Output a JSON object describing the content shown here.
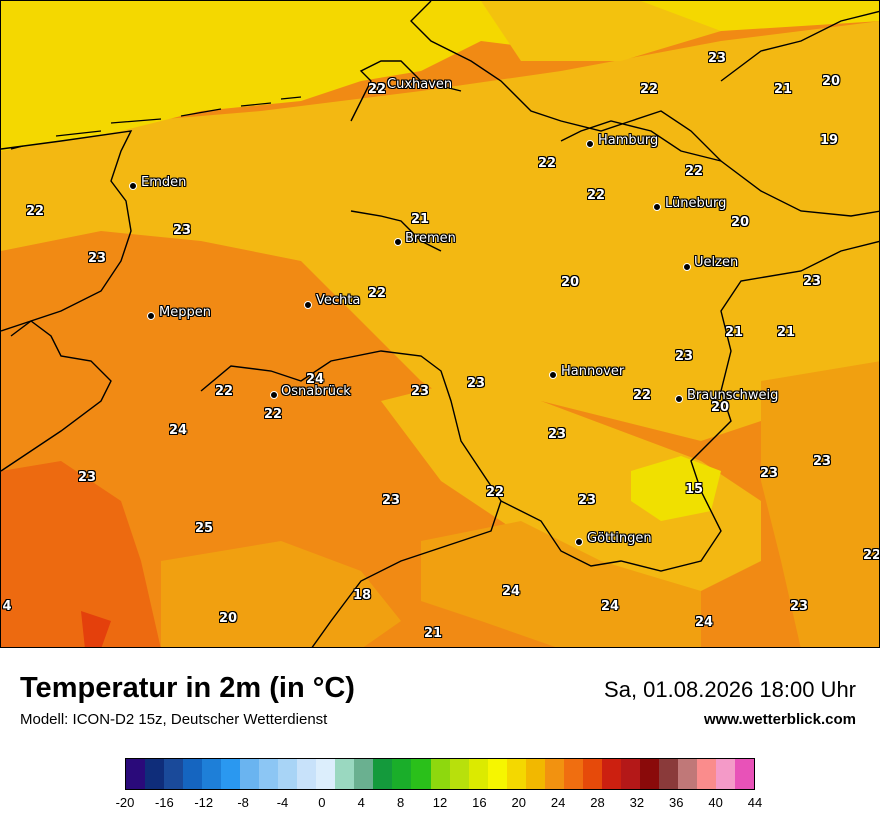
{
  "map": {
    "cities": [
      {
        "name": "Cuxhaven"
      },
      {
        "name": "Hamburg"
      },
      {
        "name": "Emden"
      },
      {
        "name": "Lüneburg"
      },
      {
        "name": "Bremen"
      },
      {
        "name": "Uelzen"
      },
      {
        "name": "Vechta"
      },
      {
        "name": "Meppen"
      },
      {
        "name": "Hannover"
      },
      {
        "name": "Osnabrück"
      },
      {
        "name": "Braunschweig"
      },
      {
        "name": "Göttingen"
      }
    ],
    "temperatures": [
      {
        "v": "22"
      },
      {
        "v": "21"
      },
      {
        "v": "20"
      },
      {
        "v": "22"
      },
      {
        "v": "19"
      },
      {
        "v": "22"
      },
      {
        "v": "22"
      },
      {
        "v": "22"
      },
      {
        "v": "22"
      },
      {
        "v": "23"
      },
      {
        "v": "21"
      },
      {
        "v": "20"
      },
      {
        "v": "23"
      },
      {
        "v": "22"
      },
      {
        "v": "20"
      },
      {
        "v": "23"
      },
      {
        "v": "21"
      },
      {
        "v": "21"
      },
      {
        "v": "24"
      },
      {
        "v": "23"
      },
      {
        "v": "23"
      },
      {
        "v": "22"
      },
      {
        "v": "22"
      },
      {
        "v": "20"
      },
      {
        "v": "24"
      },
      {
        "v": "23"
      },
      {
        "v": "23"
      },
      {
        "v": "23"
      },
      {
        "v": "15"
      },
      {
        "v": "23"
      },
      {
        "v": "23"
      },
      {
        "v": "23"
      },
      {
        "v": "25"
      },
      {
        "v": "22"
      },
      {
        "v": "18"
      },
      {
        "v": "24"
      },
      {
        "v": "20"
      },
      {
        "v": "21"
      },
      {
        "v": "24"
      },
      {
        "v": "24"
      },
      {
        "v": "23"
      },
      {
        "v": "4"
      },
      {
        "v": "22"
      },
      {
        "v": "22"
      },
      {
        "v": "23"
      }
    ]
  },
  "footer": {
    "title": "Temperatur in 2m (in °C)",
    "model": "Modell: ICON-D2 15z, Deutscher Wetterdienst",
    "datetime": "Sa, 01.08.2026 18:00 Uhr",
    "source": "www.wetterblick.com"
  },
  "colorbar": {
    "colors": [
      "#2a0a7a",
      "#0f2d7a",
      "#1a4a9a",
      "#1565c0",
      "#1e7fd8",
      "#2a98f0",
      "#6ab4f0",
      "#8cc6f4",
      "#a8d4f6",
      "#c8e2fa",
      "#dceefc",
      "#9ad8c0",
      "#6ab090",
      "#149a3c",
      "#1aae2a",
      "#2ac01a",
      "#8ed80e",
      "#b8e00c",
      "#dcea00",
      "#f6f600",
      "#f4d800",
      "#f2b800",
      "#f29210",
      "#f06e10",
      "#e64a0a",
      "#cc2010",
      "#b41818",
      "#8a0a0a",
      "#8a3a3a",
      "#c07878",
      "#fa8c8c",
      "#f49ac8",
      "#e852b8"
    ],
    "ticks": [
      "-20",
      "-16",
      "-12",
      "-8",
      "-4",
      "0",
      "4",
      "8",
      "12",
      "16",
      "20",
      "24",
      "28",
      "32",
      "36",
      "40",
      "44"
    ]
  }
}
